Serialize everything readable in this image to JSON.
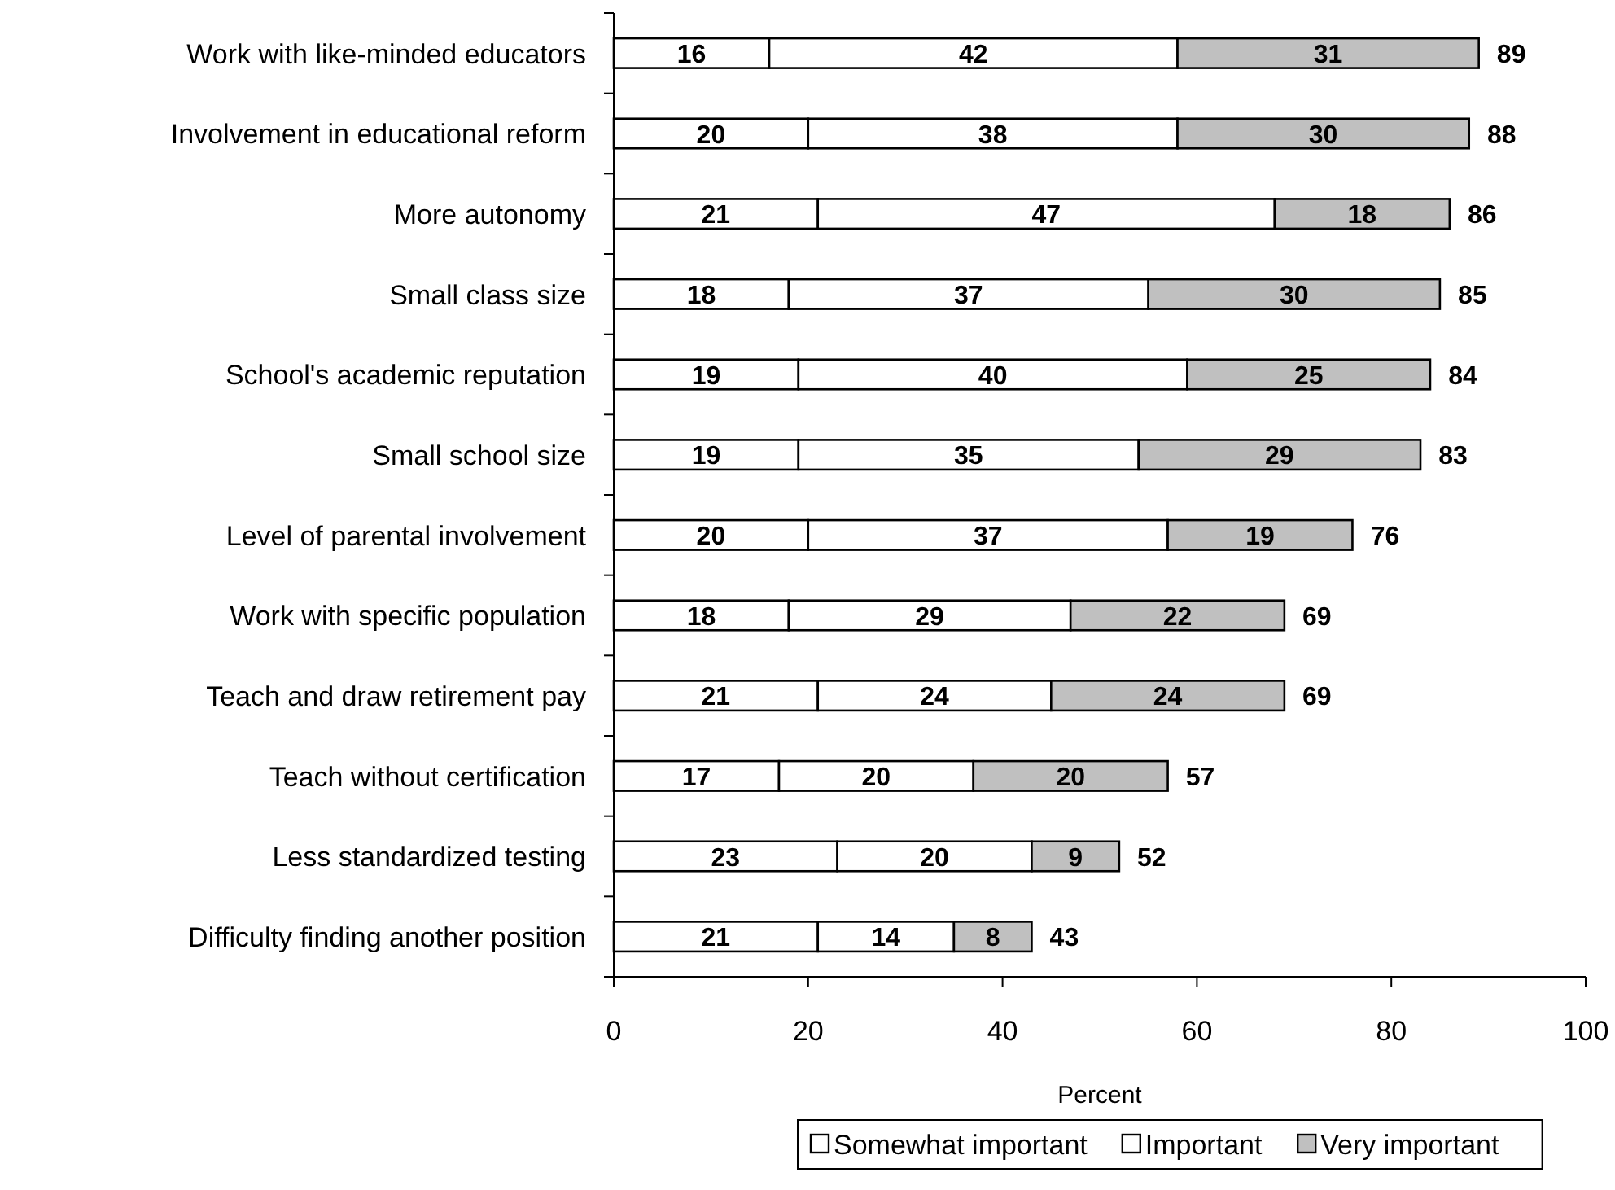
{
  "chart_data": {
    "type": "bar",
    "orientation": "horizontal",
    "stacked": true,
    "xlabel": "Percent",
    "categories": [
      "Work with like-minded educators",
      "Involvement in educational reform",
      "More autonomy",
      "Small class size",
      "School's academic reputation",
      "Small school size",
      "Level of parental involvement",
      "Work with specific population",
      "Teach and draw retirement pay",
      "Teach without certification",
      "Less standardized testing",
      "Difficulty finding another position"
    ],
    "series": [
      {
        "name": "Somewhat important",
        "color": "#ffffff",
        "values": [
          16,
          20,
          21,
          18,
          19,
          19,
          20,
          18,
          21,
          17,
          23,
          21
        ]
      },
      {
        "name": "Important",
        "color": "#ffffff",
        "values": [
          42,
          38,
          47,
          37,
          40,
          35,
          37,
          29,
          24,
          20,
          20,
          14
        ]
      },
      {
        "name": "Very important",
        "color": "#c0c0c0",
        "values": [
          31,
          30,
          18,
          30,
          25,
          29,
          19,
          22,
          24,
          20,
          9,
          8
        ]
      }
    ],
    "totals": [
      "89",
      "88",
      "86",
      "85",
      "84",
      "83",
      "76",
      "69",
      "69",
      "57",
      "52",
      "43"
    ],
    "data_labels": true,
    "xlim": [
      0,
      100
    ],
    "xticks": [
      0,
      20,
      40,
      60,
      80,
      100
    ],
    "grid": false,
    "legend": "bottom"
  }
}
